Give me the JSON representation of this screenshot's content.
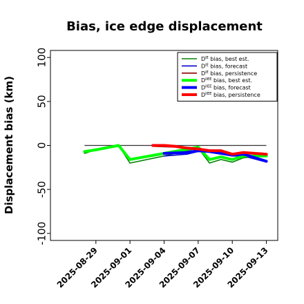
{
  "chart_data": {
    "type": "line",
    "title": "Bias, ice edge displacement",
    "xlabel": "",
    "ylabel": "Displacement bias (km)",
    "ylim": [
      -108,
      108
    ],
    "yticks": [
      -100,
      -50,
      0,
      50,
      100
    ],
    "ytick_labels": [
      "-100",
      "-50",
      "0",
      "50",
      "100"
    ],
    "xlim": [
      "2025-08-25",
      "2025-09-14"
    ],
    "xticks": [
      "2025-08-29",
      "2025-09-01",
      "2025-09-04",
      "2025-09-07",
      "2025-09-10",
      "2025-09-13"
    ],
    "highlight_tick": "2025-09-04",
    "highlight_color": "#228b22",
    "zero_line": 0,
    "legend_position": "top-right",
    "series": [
      {
        "name": "D^IE bias, best est.",
        "label_main": "D",
        "label_sup": "IE",
        "label_rest": " bias, best est.",
        "color": "#008000",
        "width": "thin",
        "points": [
          [
            "2025-08-28",
            -9
          ],
          [
            "2025-08-29",
            -5
          ],
          [
            "2025-08-31",
            0
          ],
          [
            "2025-09-01",
            -20
          ],
          [
            "2025-09-04",
            -12
          ],
          [
            "2025-09-07",
            -3
          ],
          [
            "2025-09-08",
            -20
          ],
          [
            "2025-09-09",
            -16
          ],
          [
            "2025-09-10",
            -19
          ],
          [
            "2025-09-11",
            -14
          ],
          [
            "2025-09-13",
            -12
          ]
        ]
      },
      {
        "name": "D^IE bias, forecast",
        "label_main": "D",
        "label_sup": "IE",
        "label_rest": " bias, forecast",
        "color": "#0000cc",
        "width": "thin",
        "points": [
          [
            "2025-09-04",
            -12
          ],
          [
            "2025-09-06",
            -10
          ],
          [
            "2025-09-07",
            -7
          ],
          [
            "2025-09-08",
            -7
          ],
          [
            "2025-09-10",
            -12
          ],
          [
            "2025-09-11",
            -12
          ],
          [
            "2025-09-13",
            -19
          ]
        ]
      },
      {
        "name": "D^IE bias, persistence",
        "label_main": "D",
        "label_sup": "IE",
        "label_rest": " bias, persistence",
        "color": "#8b0000",
        "width": "thin",
        "points": [
          [
            "2025-09-03",
            -1
          ],
          [
            "2025-09-05",
            -2
          ],
          [
            "2025-09-06",
            -4
          ],
          [
            "2025-09-07",
            -4
          ],
          [
            "2025-09-08",
            -7
          ],
          [
            "2025-09-09",
            -7
          ],
          [
            "2025-09-10",
            -11
          ],
          [
            "2025-09-11",
            -8
          ],
          [
            "2025-09-12",
            -10
          ],
          [
            "2025-09-13",
            -11
          ]
        ]
      },
      {
        "name": "D^IIEE bias, best est.",
        "label_main": "D",
        "label_sup": "IIEE",
        "label_rest": " bias, best est.",
        "color": "#00ff00",
        "width": "thick",
        "points": [
          [
            "2025-08-28",
            -7
          ],
          [
            "2025-08-29",
            -5
          ],
          [
            "2025-08-31",
            0
          ],
          [
            "2025-09-01",
            -16
          ],
          [
            "2025-09-04",
            -9
          ],
          [
            "2025-09-07",
            -2
          ],
          [
            "2025-09-08",
            -16
          ],
          [
            "2025-09-09",
            -13
          ],
          [
            "2025-09-10",
            -16
          ],
          [
            "2025-09-11",
            -12
          ],
          [
            "2025-09-13",
            -12
          ]
        ]
      },
      {
        "name": "D^IIEE bias, forecast",
        "label_main": "D",
        "label_sup": "IIEE",
        "label_rest": " bias, forecast",
        "color": "#0000ff",
        "width": "thick",
        "points": [
          [
            "2025-09-04",
            -9
          ],
          [
            "2025-09-06",
            -8
          ],
          [
            "2025-09-07",
            -6
          ],
          [
            "2025-09-08",
            -7
          ],
          [
            "2025-09-10",
            -11
          ],
          [
            "2025-09-11",
            -10
          ],
          [
            "2025-09-13",
            -18
          ]
        ]
      },
      {
        "name": "D^IIEE bias, persistence",
        "label_main": "D",
        "label_sup": "IIEE",
        "label_rest": " bias, persistence",
        "color": "#ff0000",
        "width": "thick",
        "points": [
          [
            "2025-09-03",
            0
          ],
          [
            "2025-09-04",
            0
          ],
          [
            "2025-09-05",
            -1
          ],
          [
            "2025-09-06",
            -3
          ],
          [
            "2025-09-07",
            -4
          ],
          [
            "2025-09-08",
            -6
          ],
          [
            "2025-09-09",
            -6
          ],
          [
            "2025-09-10",
            -10
          ],
          [
            "2025-09-11",
            -8
          ],
          [
            "2025-09-12",
            -9
          ],
          [
            "2025-09-13",
            -10
          ]
        ]
      }
    ]
  }
}
